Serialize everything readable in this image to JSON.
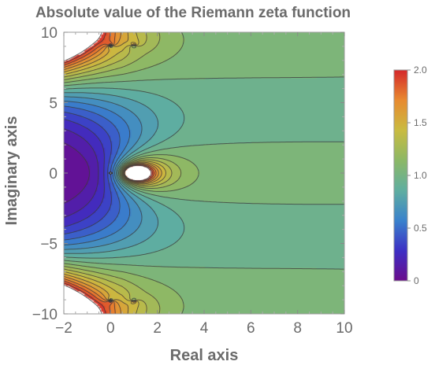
{
  "chart_data": {
    "type": "heatmap",
    "subtype": "contour",
    "title": "Absolute value of the Riemann zeta function",
    "xlabel": "Real axis",
    "ylabel": "Imaginary axis",
    "xlim": [
      -2,
      10
    ],
    "ylim": [
      -10,
      10
    ],
    "xticks": [
      -2,
      0,
      2,
      4,
      6,
      8,
      10
    ],
    "yticks": [
      -10,
      -5,
      0,
      5,
      10
    ],
    "x_tick_labels": [
      "−2",
      "0",
      "2",
      "4",
      "6",
      "8",
      "10"
    ],
    "y_tick_labels": [
      "−10",
      "−5",
      "0",
      "5",
      "10"
    ],
    "function": "|zeta(x + i y)|",
    "pole": {
      "x": 1,
      "y": 0
    },
    "contour_step": 0.1,
    "colorbar": {
      "min": 0,
      "max": 2.0,
      "ticks": [
        0,
        0.5,
        1.0,
        1.5,
        2.0
      ],
      "tick_labels": [
        "0",
        "0.5",
        "1.0",
        "1.5",
        "2.0"
      ],
      "colors": [
        "#6a0c8c",
        "#3d2fc4",
        "#3a82cc",
        "#5faea0",
        "#8cb866",
        "#c9bb41",
        "#e88a30",
        "#d4272a"
      ]
    },
    "legend_placement": "right",
    "grid": false
  }
}
